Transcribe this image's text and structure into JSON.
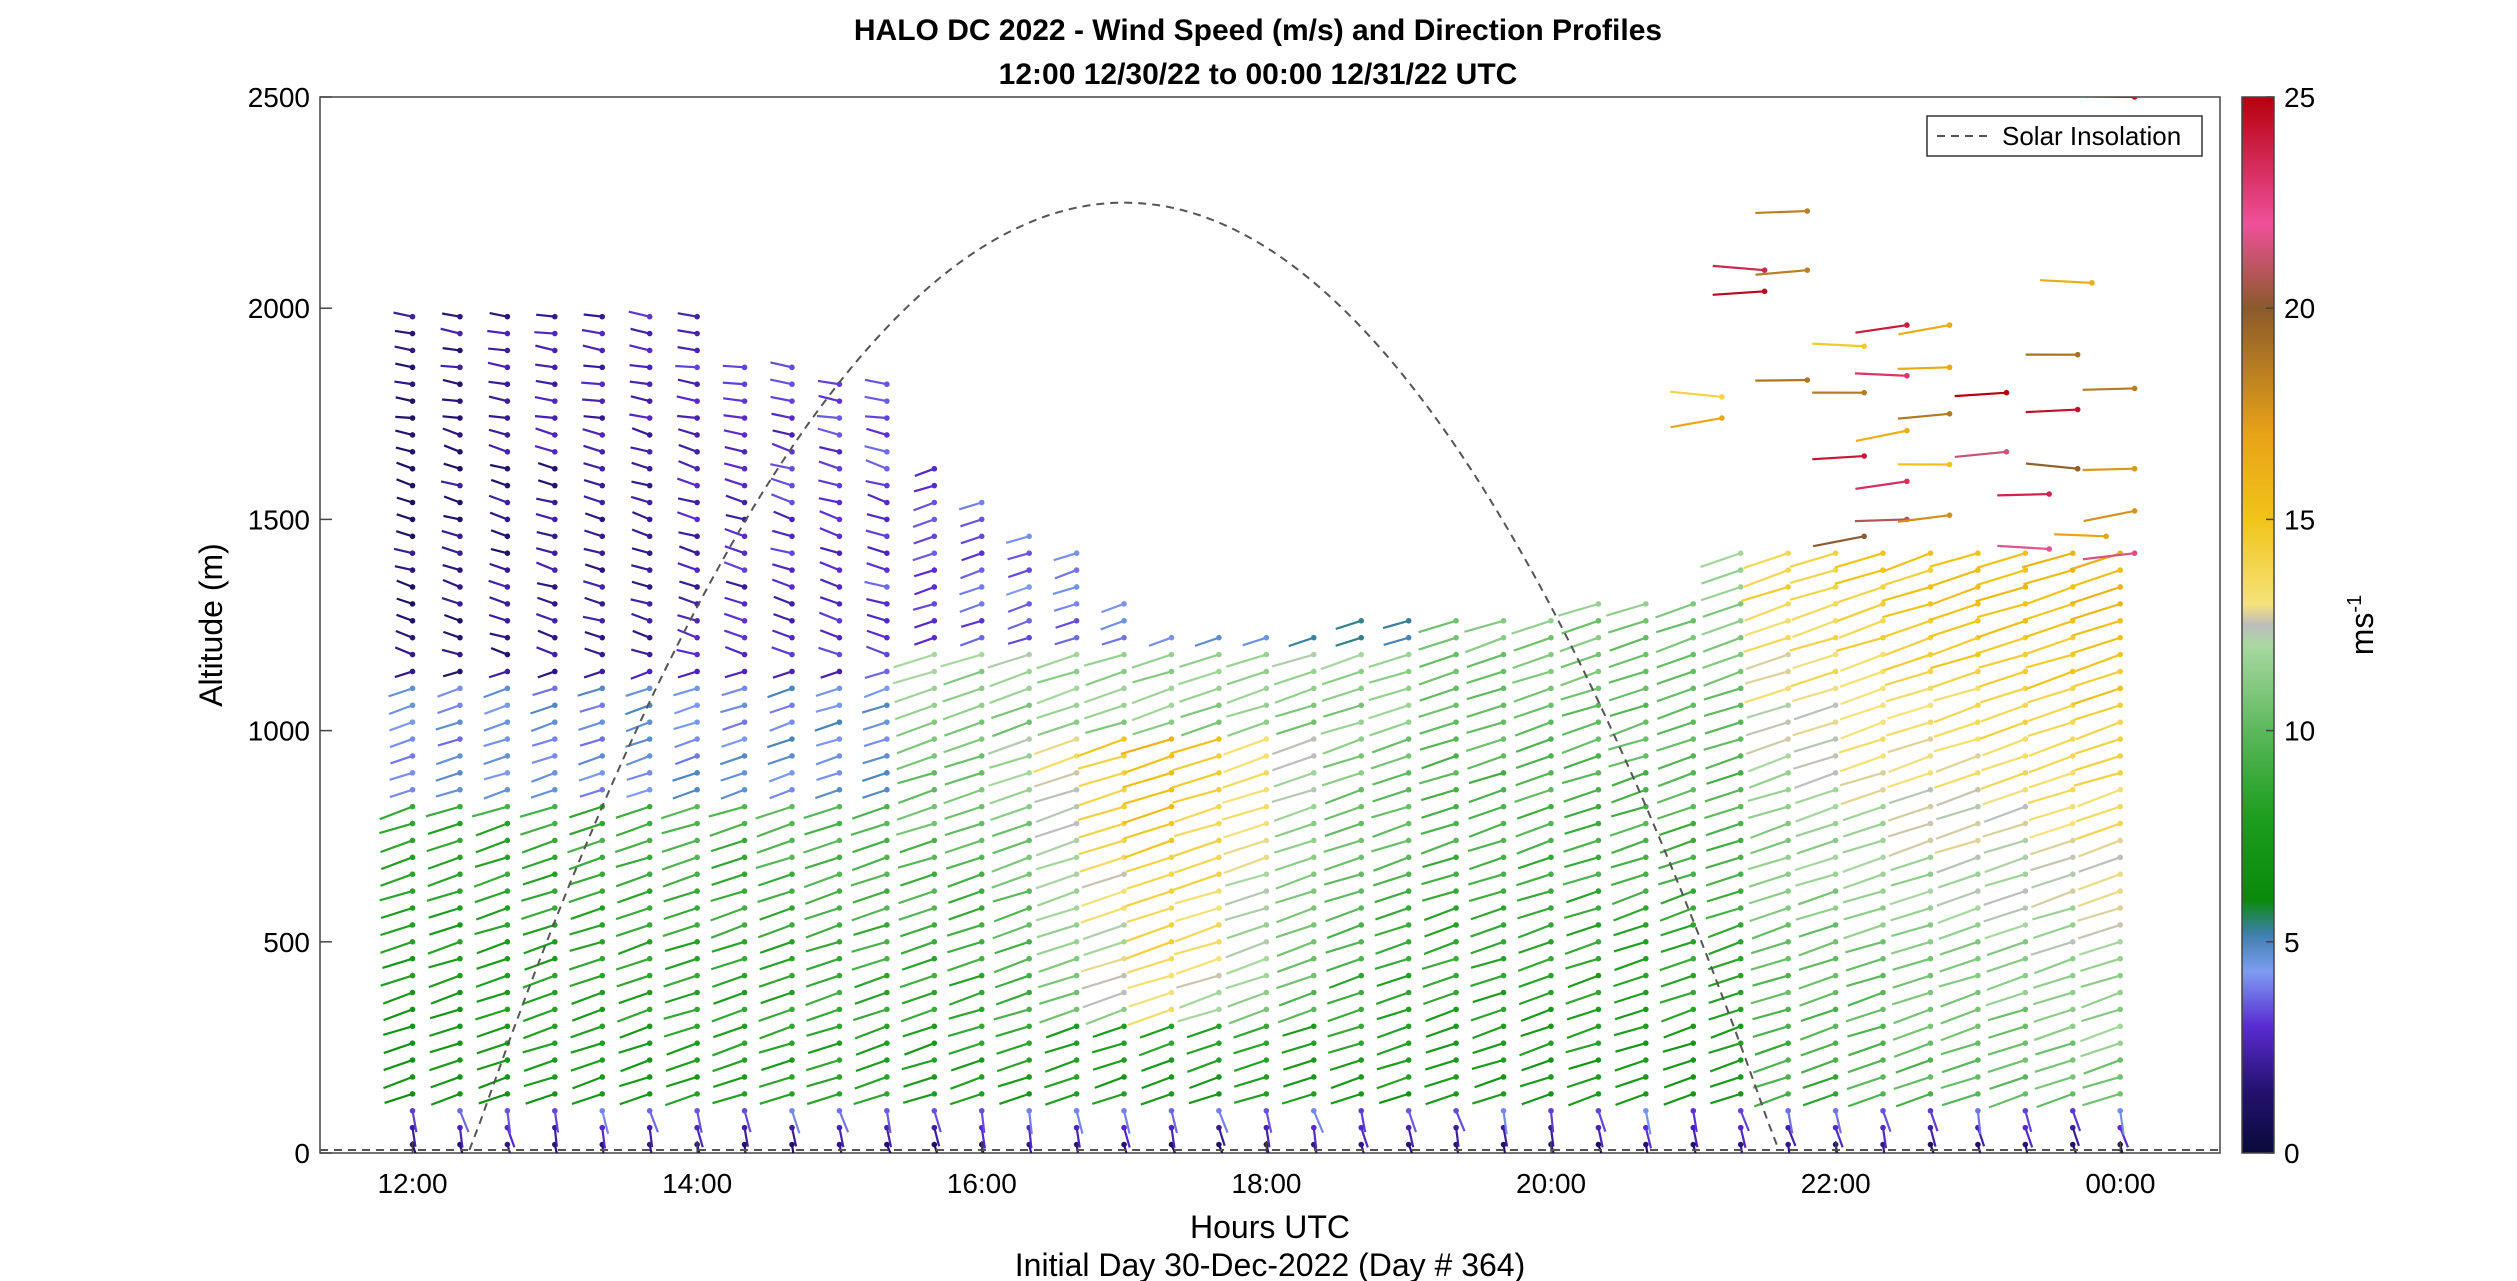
{
  "chart_data": {
    "type": "vector-field",
    "title": "HALO DC 2022 - Wind Speed (m/s) and Direction Profiles",
    "subtitle": "12:00 12/30/22 to 00:00 12/31/22  UTC",
    "xlabel": "Hours UTC",
    "ylabel": "Altitude (m)",
    "footer": "Initial Day 30-Dec-2022 (Day # 364)",
    "x_tick_labels": [
      "12:00",
      "14:00",
      "16:00",
      "18:00",
      "20:00",
      "22:00",
      "00:00"
    ],
    "x_tick_hours": [
      12,
      14,
      16,
      18,
      20,
      22,
      24
    ],
    "xlim_hours": [
      11.35,
      24.7
    ],
    "ylim": [
      0,
      2500
    ],
    "y_ticks": [
      0,
      500,
      1000,
      1500,
      2000,
      2500
    ],
    "colorbar": {
      "label": "ms-1",
      "label_main": "ms",
      "label_sup": "-1",
      "range": [
        0,
        25
      ],
      "ticks": [
        0,
        5,
        10,
        15,
        20,
        25
      ],
      "stops": [
        {
          "v": 0,
          "color": "#0a0a3c"
        },
        {
          "v": 1.5,
          "color": "#241270"
        },
        {
          "v": 3,
          "color": "#5a2bd1"
        },
        {
          "v": 4.3,
          "color": "#7d9cf2"
        },
        {
          "v": 5.2,
          "color": "#3d7fa8"
        },
        {
          "v": 6,
          "color": "#0a8a0a"
        },
        {
          "v": 8,
          "color": "#1e9e1e"
        },
        {
          "v": 10,
          "color": "#5cb85c"
        },
        {
          "v": 12,
          "color": "#a8d8a0"
        },
        {
          "v": 12.5,
          "color": "#bdbdbd"
        },
        {
          "v": 13,
          "color": "#f5e27a"
        },
        {
          "v": 15,
          "color": "#f0c419"
        },
        {
          "v": 17,
          "color": "#e8a317"
        },
        {
          "v": 20,
          "color": "#8b5a2b"
        },
        {
          "v": 22,
          "color": "#f0509a"
        },
        {
          "v": 25,
          "color": "#b5000e"
        }
      ]
    },
    "legend": [
      {
        "label": "Solar Insolation",
        "style": "dashed",
        "color": "#555555"
      }
    ],
    "solar_insolation_curve": {
      "start_hour": 12.4,
      "peak_hour": 17.0,
      "end_hour": 21.6,
      "peak_altitude": 2250
    },
    "wind_profiles": {
      "start_hour": 12.0,
      "step_hours": 0.3333,
      "count": 37,
      "altitude_step_m": 40,
      "notes": "Wind barb sticks per profile; direction mostly from southwest at low levels, colored by speed"
    }
  }
}
